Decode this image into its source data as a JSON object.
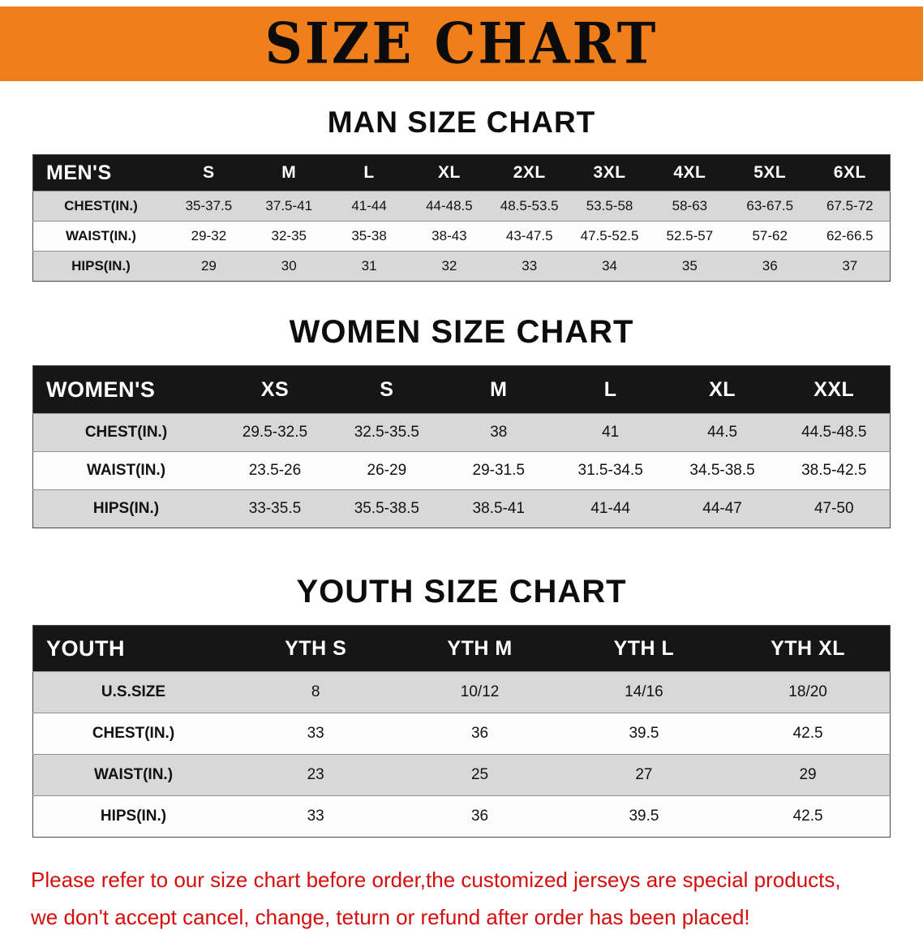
{
  "banner": {
    "title": "SIZE CHART"
  },
  "chart_data": [
    {
      "type": "table",
      "name": "men-size",
      "title": "MAN SIZE CHART",
      "columns": [
        "MEN'S",
        "S",
        "M",
        "L",
        "XL",
        "2XL",
        "3XL",
        "4XL",
        "5XL",
        "6XL"
      ],
      "rows": [
        [
          "CHEST(IN.)",
          "35-37.5",
          "37.5-41",
          "41-44",
          "44-48.5",
          "48.5-53.5",
          "53.5-58",
          "58-63",
          "63-67.5",
          "67.5-72"
        ],
        [
          "WAIST(IN.)",
          "29-32",
          "32-35",
          "35-38",
          "38-43",
          "43-47.5",
          "47.5-52.5",
          "52.5-57",
          "57-62",
          "62-66.5"
        ],
        [
          "HIPS(IN.)",
          "29",
          "30",
          "31",
          "32",
          "33",
          "34",
          "35",
          "36",
          "37"
        ]
      ]
    },
    {
      "type": "table",
      "name": "women-size",
      "title": "WOMEN SIZE CHART",
      "columns": [
        "WOMEN'S",
        "XS",
        "S",
        "M",
        "L",
        "XL",
        "XXL"
      ],
      "rows": [
        [
          "CHEST(IN.)",
          "29.5-32.5",
          "32.5-35.5",
          "38",
          "41",
          "44.5",
          "44.5-48.5"
        ],
        [
          "WAIST(IN.)",
          "23.5-26",
          "26-29",
          "29-31.5",
          "31.5-34.5",
          "34.5-38.5",
          "38.5-42.5"
        ],
        [
          "HIPS(IN.)",
          "33-35.5",
          "35.5-38.5",
          "38.5-41",
          "41-44",
          "44-47",
          "47-50"
        ]
      ]
    },
    {
      "type": "table",
      "name": "youth-size",
      "title": "YOUTH SIZE CHART",
      "columns": [
        "YOUTH",
        "YTH S",
        "YTH M",
        "YTH L",
        "YTH XL"
      ],
      "rows": [
        [
          "U.S.SIZE",
          "8",
          "10/12",
          "14/16",
          "18/20"
        ],
        [
          "CHEST(IN.)",
          "33",
          "36",
          "39.5",
          "42.5"
        ],
        [
          "WAIST(IN.)",
          "23",
          "25",
          "27",
          "29"
        ],
        [
          "HIPS(IN.)",
          "33",
          "36",
          "39.5",
          "42.5"
        ]
      ]
    }
  ],
  "disclaimer": {
    "line1": "Please refer to our size chart before order,the customized jerseys are special products,",
    "line2": "we don't accept cancel, change, teturn or refund after order has been placed!"
  },
  "colors": {
    "banner_bg": "#ef7f1a",
    "table_header_bg": "#161616",
    "row_alt_bg": "#d8d8d8",
    "disclaimer_text": "#d40d0d"
  }
}
